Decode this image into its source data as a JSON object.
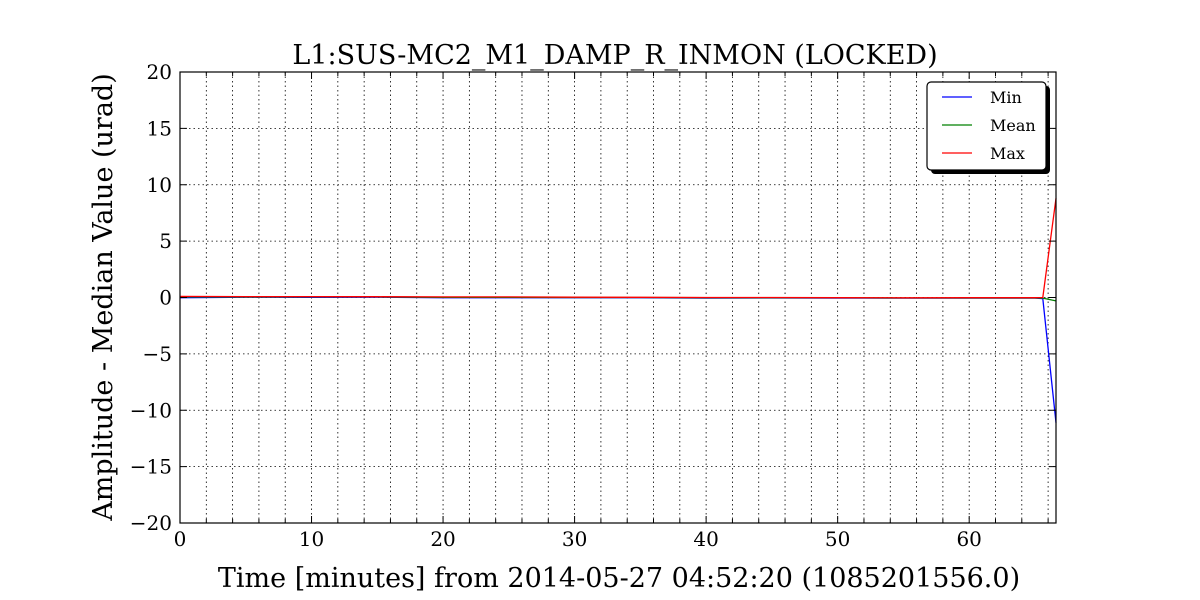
{
  "chart_data": {
    "type": "line",
    "title": "L1:SUS-MC2_M1_DAMP_R_INMON (LOCKED)",
    "xlabel": "Time [minutes] from 2014-05-27 04:52:20 (1085201556.0)",
    "ylabel": "Amplitude - Median Value (urad)",
    "xlim": [
      0,
      66.6
    ],
    "ylim": [
      -20,
      20
    ],
    "xticks": [
      0,
      10,
      20,
      30,
      40,
      50,
      60
    ],
    "yticks": [
      -20,
      -15,
      -10,
      -5,
      0,
      5,
      10,
      15,
      20
    ],
    "xtick_labels": [
      "0",
      "10",
      "20",
      "30",
      "40",
      "50",
      "60"
    ],
    "ytick_labels": [
      "−20",
      "−15",
      "−10",
      "−5",
      "0",
      "5",
      "10",
      "15",
      "20"
    ],
    "grid": true,
    "legend_position": "top-right",
    "series": [
      {
        "name": "Min",
        "color": "#0000ff",
        "x": [
          0,
          5,
          10,
          15,
          20,
          25,
          30,
          35,
          40,
          45,
          50,
          55,
          60,
          65,
          65.6,
          66.6
        ],
        "y": [
          -0.02,
          0.03,
          0.02,
          0.03,
          -0.02,
          -0.02,
          -0.02,
          -0.02,
          -0.05,
          -0.04,
          -0.05,
          -0.05,
          -0.05,
          -0.05,
          -0.1,
          -11.1
        ]
      },
      {
        "name": "Mean",
        "color": "#008000",
        "x": [
          0,
          5,
          10,
          15,
          20,
          25,
          30,
          35,
          40,
          45,
          50,
          55,
          60,
          65,
          65.6,
          66.6
        ],
        "y": [
          0.05,
          0.04,
          0.05,
          0.05,
          0.02,
          0.02,
          0.0,
          0.0,
          -0.02,
          -0.02,
          -0.02,
          -0.04,
          -0.04,
          -0.04,
          -0.05,
          -0.3
        ]
      },
      {
        "name": "Max",
        "color": "#ff0000",
        "x": [
          0,
          5,
          10,
          15,
          20,
          25,
          30,
          35,
          40,
          45,
          50,
          55,
          60,
          65,
          65.6,
          66.6
        ],
        "y": [
          0.1,
          0.08,
          0.08,
          0.07,
          0.05,
          0.05,
          0.03,
          0.02,
          0.0,
          0.0,
          -0.02,
          -0.03,
          -0.02,
          -0.02,
          0.0,
          8.8
        ]
      }
    ]
  }
}
